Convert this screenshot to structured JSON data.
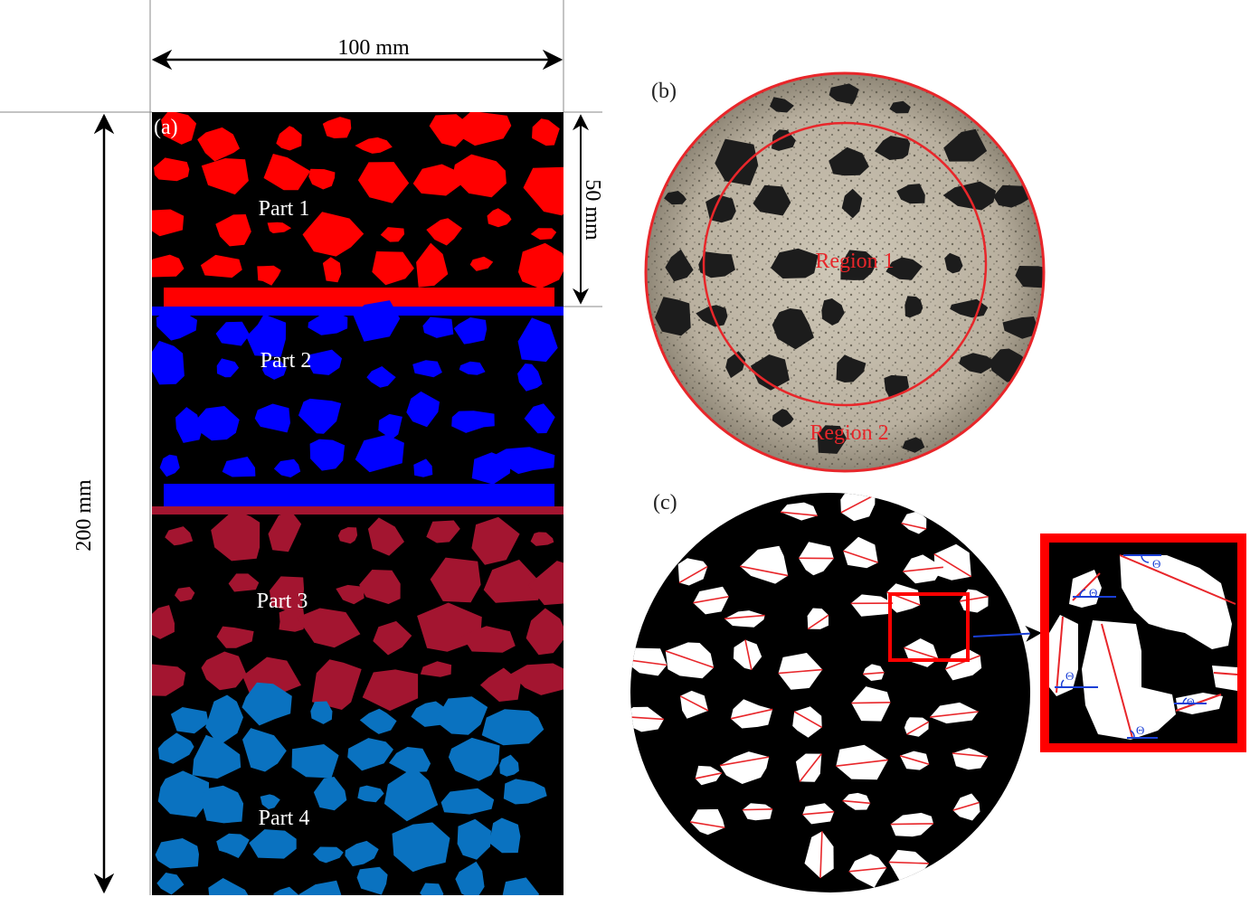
{
  "panels": {
    "a": {
      "label": "(a)",
      "width_label": "100 mm",
      "height_label": "200 mm",
      "part_height_label": "50 mm",
      "parts": [
        {
          "label": "Part 1",
          "color": "#ff0000"
        },
        {
          "label": "Part 2",
          "color": "#0000ff"
        },
        {
          "label": "Part 3",
          "color": "#a31530"
        },
        {
          "label": "Part 4",
          "color": "#0a72c0"
        }
      ],
      "background_color": "#000000"
    },
    "b": {
      "label": "(b)",
      "regions": [
        {
          "label": "Region 1"
        },
        {
          "label": "Region 2"
        }
      ],
      "outline_color": "#e8262a"
    },
    "c": {
      "label": "(c)",
      "angle_symbol": "Θ",
      "axis_line_color": "#e8262a",
      "reference_line_color": "#1a3fd6",
      "zoom_frame_color": "#ff0000"
    }
  }
}
